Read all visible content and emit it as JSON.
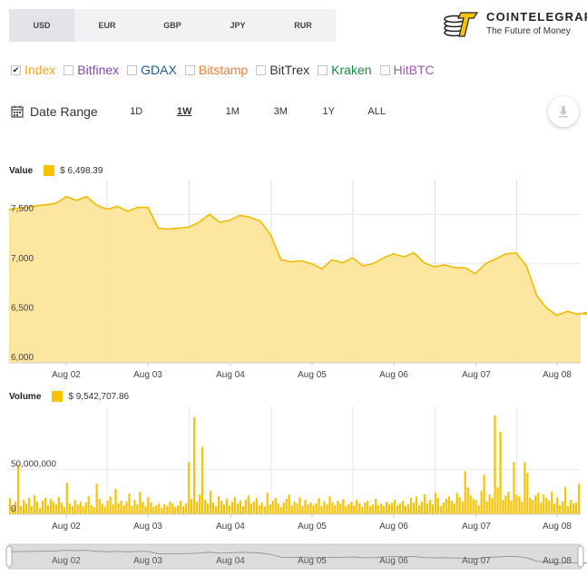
{
  "currencies": [
    {
      "label": "USD",
      "active": true
    },
    {
      "label": "EUR",
      "active": false
    },
    {
      "label": "GBP",
      "active": false
    },
    {
      "label": "JPY",
      "active": false
    },
    {
      "label": "RUR",
      "active": false
    }
  ],
  "brand": {
    "name": "COINTELEGRAPH",
    "tagline": "The Future of Money"
  },
  "exchanges": [
    {
      "label": "Index",
      "checked": true,
      "color": "#f5a623"
    },
    {
      "label": "Bitfinex",
      "checked": false,
      "color": "#8e44ad"
    },
    {
      "label": "GDAX",
      "checked": false,
      "color": "#1f5c99"
    },
    {
      "label": "Bitstamp",
      "checked": false,
      "color": "#f0813a"
    },
    {
      "label": "BitTrex",
      "checked": false,
      "color": "#333333"
    },
    {
      "label": "Kraken",
      "checked": false,
      "color": "#1a8a3c"
    },
    {
      "label": "HitBTC",
      "checked": false,
      "color": "#9b59b6"
    }
  ],
  "range": {
    "label": "Date Range",
    "options": [
      {
        "label": "1D",
        "active": false
      },
      {
        "label": "1W",
        "active": true
      },
      {
        "label": "1M",
        "active": false
      },
      {
        "label": "3M",
        "active": false
      },
      {
        "label": "1Y",
        "active": false
      },
      {
        "label": "ALL",
        "active": false
      }
    ]
  },
  "value_legend": {
    "title": "Value",
    "value": "$ 6,498.39"
  },
  "volume_legend": {
    "title": "Volume",
    "value": "$ 9,542,707.86"
  },
  "colors": {
    "accent": "#f7c200",
    "area_fill": "#fde59a",
    "line": "#f2bb00"
  },
  "chart_data": [
    {
      "type": "area",
      "title": "Value",
      "x_tick_labels": [
        "Aug 02",
        "Aug 03",
        "Aug 04",
        "Aug 05",
        "Aug 06",
        "Aug 07",
        "Aug 08"
      ],
      "y_tick_labels": [
        "6,000",
        "6,500",
        "7,000",
        "7,500"
      ],
      "ylim": [
        6000,
        7850
      ],
      "grid": true,
      "series": [
        {
          "name": "Index",
          "points": [
            [
              "Aug 01 18:00",
              7550
            ],
            [
              "Aug 01 21:00",
              7610
            ],
            [
              "Aug 02 00:00",
              7680
            ],
            [
              "Aug 02 03:00",
              7640
            ],
            [
              "Aug 02 06:00",
              7680
            ],
            [
              "Aug 02 09:00",
              7590
            ],
            [
              "Aug 02 12:00",
              7550
            ],
            [
              "Aug 02 15:00",
              7580
            ],
            [
              "Aug 02 18:00",
              7530
            ],
            [
              "Aug 02 21:00",
              7570
            ],
            [
              "Aug 03 00:00",
              7570
            ],
            [
              "Aug 03 03:00",
              7360
            ],
            [
              "Aug 03 06:00",
              7350
            ],
            [
              "Aug 03 09:00",
              7360
            ],
            [
              "Aug 03 12:00",
              7370
            ],
            [
              "Aug 03 15:00",
              7420
            ],
            [
              "Aug 03 18:00",
              7500
            ],
            [
              "Aug 03 21:00",
              7420
            ],
            [
              "Aug 04 00:00",
              7440
            ],
            [
              "Aug 04 03:00",
              7490
            ],
            [
              "Aug 04 06:00",
              7470
            ],
            [
              "Aug 04 09:00",
              7430
            ],
            [
              "Aug 04 12:00",
              7290
            ],
            [
              "Aug 04 15:00",
              7040
            ],
            [
              "Aug 04 18:00",
              7020
            ],
            [
              "Aug 04 21:00",
              7030
            ],
            [
              "Aug 05 00:00",
              7000
            ],
            [
              "Aug 05 03:00",
              6950
            ],
            [
              "Aug 05 06:00",
              7040
            ],
            [
              "Aug 05 09:00",
              7010
            ],
            [
              "Aug 05 12:00",
              7060
            ],
            [
              "Aug 05 15:00",
              6980
            ],
            [
              "Aug 05 18:00",
              7000
            ],
            [
              "Aug 05 21:00",
              7060
            ],
            [
              "Aug 06 00:00",
              7100
            ],
            [
              "Aug 06 03:00",
              7070
            ],
            [
              "Aug 06 06:00",
              7110
            ],
            [
              "Aug 06 09:00",
              7010
            ],
            [
              "Aug 06 12:00",
              6970
            ],
            [
              "Aug 06 15:00",
              6990
            ],
            [
              "Aug 06 18:00",
              6960
            ],
            [
              "Aug 06 21:00",
              6960
            ],
            [
              "Aug 07 00:00",
              6900
            ],
            [
              "Aug 07 03:00",
              7000
            ],
            [
              "Aug 07 06:00",
              7050
            ],
            [
              "Aug 07 09:00",
              7100
            ],
            [
              "Aug 07 12:00",
              7110
            ],
            [
              "Aug 07 15:00",
              6980
            ],
            [
              "Aug 07 18:00",
              6680
            ],
            [
              "Aug 07 21:00",
              6550
            ],
            [
              "Aug 08 00:00",
              6480
            ],
            [
              "Aug 08 03:00",
              6520
            ],
            [
              "Aug 08 06:00",
              6490
            ],
            [
              "Aug 08 09:00",
              6510
            ],
            [
              "Aug 08 12:00",
              6480
            ],
            [
              "Aug 08 14:00",
              6498
            ]
          ]
        }
      ]
    },
    {
      "type": "bar",
      "title": "Volume",
      "x_tick_labels": [
        "Aug 02",
        "Aug 03",
        "Aug 04",
        "Aug 05",
        "Aug 06",
        "Aug 07",
        "Aug 08"
      ],
      "y_tick_labels": [
        "0",
        "50,000,000"
      ],
      "ylim": [
        0,
        120000000
      ],
      "grid": true,
      "series": [
        {
          "name": "Volume",
          "values": [
            18000000,
            8000000,
            14000000,
            55000000,
            9000000,
            16000000,
            12000000,
            18000000,
            9000000,
            21000000,
            14000000,
            7000000,
            15000000,
            18000000,
            10000000,
            17000000,
            14000000,
            11000000,
            19000000,
            13000000,
            8000000,
            35000000,
            12000000,
            9000000,
            16000000,
            11000000,
            14000000,
            9000000,
            13000000,
            20000000,
            10000000,
            8000000,
            34000000,
            17000000,
            12000000,
            9000000,
            15000000,
            20000000,
            11000000,
            28000000,
            12000000,
            15000000,
            10000000,
            14000000,
            23000000,
            9000000,
            16000000,
            11000000,
            25000000,
            14000000,
            9000000,
            19000000,
            13000000,
            8000000,
            10000000,
            12000000,
            7000000,
            11000000,
            9000000,
            14000000,
            12000000,
            8000000,
            10000000,
            15000000,
            9000000,
            12000000,
            58000000,
            17000000,
            108000000,
            14000000,
            22000000,
            75000000,
            16000000,
            12000000,
            26000000,
            13000000,
            9000000,
            20000000,
            15000000,
            11000000,
            17000000,
            10000000,
            14000000,
            19000000,
            12000000,
            15000000,
            9000000,
            16000000,
            21000000,
            12000000,
            14000000,
            18000000,
            10000000,
            13000000,
            9000000,
            24000000,
            11000000,
            15000000,
            18000000,
            12000000,
            8000000,
            13000000,
            17000000,
            22000000,
            10000000,
            14000000,
            12000000,
            19000000,
            9000000,
            16000000,
            11000000,
            13000000,
            10000000,
            12000000,
            18000000,
            9000000,
            14000000,
            11000000,
            20000000,
            13000000,
            10000000,
            15000000,
            12000000,
            17000000,
            9000000,
            11000000,
            14000000,
            10000000,
            16000000,
            12000000,
            8000000,
            13000000,
            15000000,
            9000000,
            11000000,
            17000000,
            10000000,
            12000000,
            9000000,
            14000000,
            11000000,
            13000000,
            16000000,
            10000000,
            12000000,
            15000000,
            9000000,
            11000000,
            18000000,
            13000000,
            20000000,
            10000000,
            14000000,
            22000000,
            12000000,
            16000000,
            11000000,
            24000000,
            18000000,
            9000000,
            13000000,
            17000000,
            20000000,
            15000000,
            12000000,
            24000000,
            19000000,
            14000000,
            48000000,
            30000000,
            21000000,
            17000000,
            16000000,
            10000000,
            26000000,
            44000000,
            14000000,
            22000000,
            18000000,
            110000000,
            30000000,
            92000000,
            16000000,
            21000000,
            25000000,
            15000000,
            58000000,
            22000000,
            20000000,
            14000000,
            58000000,
            46000000,
            18000000,
            16000000,
            21000000,
            24000000,
            13000000,
            22000000,
            18000000,
            15000000,
            25000000,
            12000000,
            19000000,
            10000000,
            14000000,
            30000000,
            9000000,
            16000000,
            12000000,
            13000000,
            34000000
          ]
        }
      ]
    }
  ],
  "navigator": {
    "x_tick_labels": [
      "Aug 02",
      "Aug 03",
      "Aug 04",
      "Aug 05",
      "Aug 06",
      "Aug 07",
      "Aug 08"
    ]
  }
}
